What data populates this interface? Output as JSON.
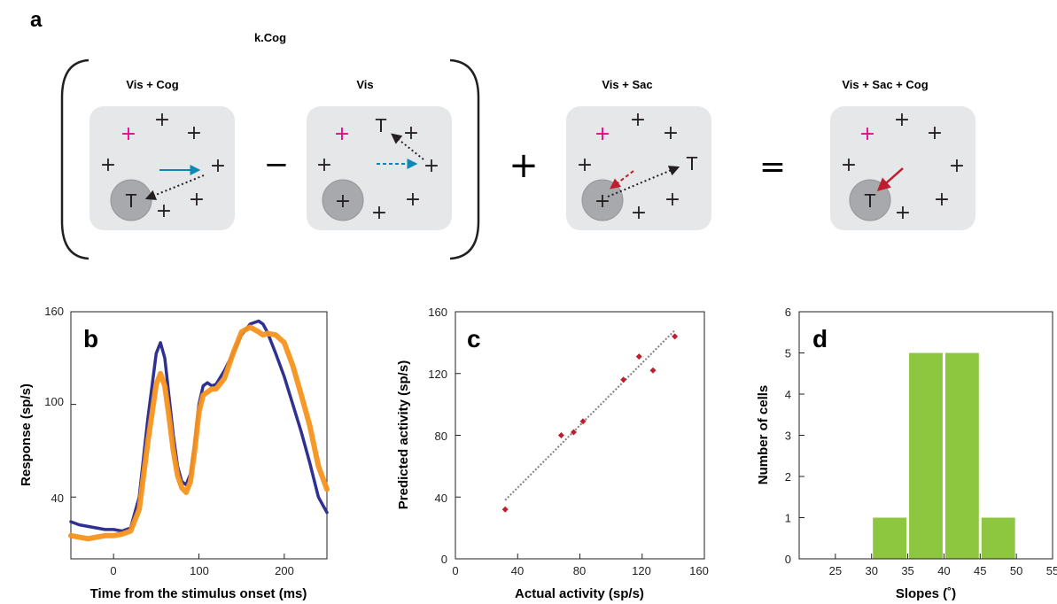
{
  "panel_a": {
    "letter": "a",
    "bracket_label": "k.Cog",
    "boxes": [
      {
        "title": "Vis + Cog"
      },
      {
        "title": "Vis"
      },
      {
        "title": "Vis + Sac"
      },
      {
        "title": "Vis + Sac + Cog"
      }
    ],
    "operators": [
      "−",
      "+",
      "="
    ],
    "glyphs": {
      "cross": "+",
      "target": "T"
    },
    "colors": {
      "box": "#e6e7e8",
      "rf_circle": "#a7a9ac",
      "magenta": "#ec008c",
      "cyan": "#0e87b4",
      "red": "#be1e2d",
      "black": "#231f20"
    }
  },
  "chart_data": [
    {
      "id": "b",
      "letter": "b",
      "type": "line",
      "xlabel": "Time from the stimulus onset (ms)",
      "ylabel": "Response (sp/s)",
      "xlim": [
        -50,
        250
      ],
      "ylim": [
        0,
        160
      ],
      "xticks": [
        "0",
        "100",
        "200"
      ],
      "yticks": [
        "40",
        "100",
        "160"
      ],
      "ytick_values": [
        40,
        100,
        160
      ],
      "xtick_values": [
        0,
        100,
        200
      ],
      "series": [
        {
          "color": "#2e3192",
          "x": [
            -50,
            -40,
            -30,
            -20,
            -10,
            0,
            10,
            20,
            30,
            40,
            50,
            55,
            60,
            65,
            70,
            75,
            80,
            85,
            90,
            95,
            100,
            105,
            110,
            115,
            120,
            130,
            140,
            150,
            160,
            170,
            175,
            180,
            190,
            200,
            210,
            220,
            230,
            240,
            250
          ],
          "y": [
            24,
            22,
            21,
            20,
            19,
            19,
            18,
            20,
            40,
            90,
            133,
            140,
            130,
            105,
            80,
            60,
            50,
            48,
            55,
            75,
            100,
            112,
            114,
            112,
            113,
            122,
            133,
            145,
            152,
            154,
            152,
            147,
            133,
            118,
            100,
            82,
            62,
            40,
            30
          ]
        },
        {
          "color": "#f7941d",
          "x": [
            -50,
            -40,
            -30,
            -20,
            -10,
            0,
            10,
            20,
            30,
            40,
            50,
            55,
            60,
            65,
            70,
            75,
            80,
            85,
            90,
            95,
            100,
            105,
            110,
            115,
            120,
            130,
            140,
            150,
            160,
            170,
            175,
            180,
            190,
            200,
            210,
            220,
            230,
            240,
            250
          ],
          "y": [
            15,
            14,
            13,
            14,
            15,
            15,
            16,
            18,
            32,
            75,
            113,
            120,
            112,
            92,
            70,
            54,
            46,
            43,
            50,
            70,
            95,
            106,
            108,
            110,
            110,
            117,
            133,
            147,
            150,
            147,
            145,
            146,
            145,
            140,
            125,
            106,
            86,
            60,
            45
          ]
        }
      ]
    },
    {
      "id": "c",
      "letter": "c",
      "type": "scatter",
      "xlabel": "Actual activity (sp/s)",
      "ylabel": "Predicted activity (sp/s)",
      "xlim": [
        0,
        160
      ],
      "ylim": [
        0,
        160
      ],
      "xticks": [
        "0",
        "40",
        "80",
        "120",
        "160"
      ],
      "yticks": [
        "0",
        "40",
        "80",
        "120",
        "160"
      ],
      "tick_values": [
        0,
        40,
        80,
        120,
        160
      ],
      "points": [
        [
          32,
          32
        ],
        [
          68,
          80
        ],
        [
          76,
          82
        ],
        [
          82,
          89
        ],
        [
          108,
          116
        ],
        [
          118,
          131
        ],
        [
          127,
          122
        ],
        [
          141,
          144
        ]
      ],
      "fit_line": [
        [
          32,
          38
        ],
        [
          141,
          148
        ]
      ],
      "point_color": "#be1e2d",
      "line_color": "#808285"
    },
    {
      "id": "d",
      "letter": "d",
      "type": "bar",
      "xlabel": "Slopes (˚)",
      "ylabel": "Number of cells",
      "xlim": [
        20,
        55
      ],
      "ylim": [
        0,
        6
      ],
      "xticks": [
        "25",
        "30",
        "35",
        "40",
        "45",
        "50",
        "55"
      ],
      "xtick_values": [
        25,
        30,
        35,
        40,
        45,
        50,
        55
      ],
      "yticks": [
        "0",
        "1",
        "2",
        "3",
        "4",
        "5",
        "6"
      ],
      "ytick_values": [
        0,
        1,
        2,
        3,
        4,
        5,
        6
      ],
      "bins": [
        [
          30,
          35
        ],
        [
          35,
          40
        ],
        [
          40,
          45
        ],
        [
          45,
          50
        ]
      ],
      "values": [
        1,
        5,
        5,
        1
      ],
      "bar_color": "#8dc63f"
    }
  ]
}
